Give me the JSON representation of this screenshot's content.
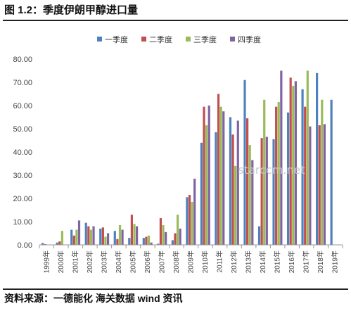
{
  "figure": {
    "title": "图 1.2：季度伊朗甲醇进口量",
    "source": "资料来源：一德能化  海关数据  wind 资讯",
    "watermark": "starccm.net"
  },
  "chart_data": {
    "type": "bar",
    "title": "",
    "xlabel": "",
    "ylabel": "",
    "ylim": [
      0,
      80
    ],
    "yticks": [
      "0.00",
      "10.00",
      "20.00",
      "30.00",
      "40.00",
      "50.00",
      "60.00",
      "70.00",
      "80.00"
    ],
    "grid": false,
    "legend_position": "top",
    "categories": [
      "1999年",
      "2000年",
      "2001年",
      "2002年",
      "2003年",
      "2004年",
      "2005年",
      "2006年",
      "2007年",
      "2008年",
      "2009年",
      "2010年",
      "2011年",
      "2012年",
      "2013年",
      "2014年",
      "2015年",
      "2016年",
      "2017年",
      "2018年",
      "2019年"
    ],
    "series": [
      {
        "name": "一季度",
        "color": "#4F81BD",
        "values": [
          0.8,
          1.0,
          6.5,
          9.5,
          7.0,
          6.0,
          3.0,
          3.0,
          0.5,
          2.0,
          20.5,
          44.0,
          48.5,
          55.0,
          71.0,
          8.0,
          45.5,
          57.0,
          67.0,
          74.0,
          62.5
        ]
      },
      {
        "name": "二季度",
        "color": "#C0504D",
        "values": [
          0.3,
          1.5,
          4.0,
          8.0,
          7.5,
          2.5,
          13.0,
          3.5,
          11.5,
          5.0,
          21.5,
          59.5,
          65.0,
          47.5,
          54.5,
          46.0,
          59.5,
          72.0,
          59.5,
          51.5,
          0
        ]
      },
      {
        "name": "三季度",
        "color": "#9BBB59",
        "values": [
          0,
          6.0,
          6.5,
          6.5,
          3.5,
          8.5,
          9.0,
          4.0,
          8.5,
          13.0,
          18.5,
          51.5,
          59.5,
          34.0,
          43.0,
          62.5,
          61.5,
          68.5,
          75.0,
          62.5,
          0
        ]
      },
      {
        "name": "四季度",
        "color": "#8064A2",
        "values": [
          0,
          0,
          10.5,
          8.0,
          5.0,
          6.5,
          8.0,
          1.0,
          5.5,
          7.0,
          28.5,
          60.0,
          57.5,
          53.5,
          36.5,
          46.5,
          75.0,
          70.5,
          51.0,
          52.0,
          0
        ]
      }
    ]
  }
}
